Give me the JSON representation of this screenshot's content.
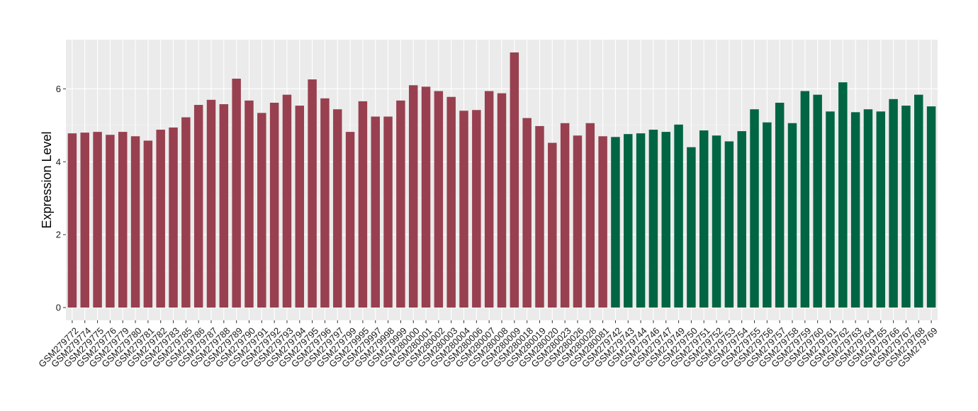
{
  "chart_data": {
    "type": "bar",
    "title": "",
    "xlabel": "",
    "ylabel": "Expression Level",
    "ylim": [
      -0.35,
      7.35
    ],
    "yticks": [
      0,
      2,
      4,
      6
    ],
    "ytick_labels": [
      "0",
      "2",
      "4",
      "6"
    ],
    "grid": true,
    "legend": "none",
    "categories": [
      "GSM279772",
      "GSM279774",
      "GSM279775",
      "GSM279776",
      "GSM279779",
      "GSM279780",
      "GSM279781",
      "GSM279782",
      "GSM279783",
      "GSM279785",
      "GSM279786",
      "GSM279787",
      "GSM279788",
      "GSM279789",
      "GSM279790",
      "GSM279791",
      "GSM279792",
      "GSM279793",
      "GSM279794",
      "GSM279795",
      "GSM279796",
      "GSM279797",
      "GSM279799",
      "GSM279995",
      "GSM279997",
      "GSM279998",
      "GSM279999",
      "GSM280000",
      "GSM280001",
      "GSM280002",
      "GSM280003",
      "GSM280004",
      "GSM280006",
      "GSM280007",
      "GSM280008",
      "GSM280009",
      "GSM280018",
      "GSM280019",
      "GSM280020",
      "GSM280023",
      "GSM280026",
      "GSM280028",
      "GSM280081",
      "GSM279742",
      "GSM279743",
      "GSM279744",
      "GSM279746",
      "GSM279747",
      "GSM279749",
      "GSM279750",
      "GSM279751",
      "GSM279752",
      "GSM279753",
      "GSM279754",
      "GSM279755",
      "GSM279756",
      "GSM279757",
      "GSM279758",
      "GSM279759",
      "GSM279760",
      "GSM279761",
      "GSM279762",
      "GSM279763",
      "GSM279764",
      "GSM279765",
      "GSM279766",
      "GSM279767",
      "GSM279768",
      "GSM279769"
    ],
    "values": [
      4.78,
      4.8,
      4.82,
      4.74,
      4.82,
      4.7,
      4.58,
      4.88,
      4.94,
      5.22,
      5.56,
      5.7,
      5.58,
      6.28,
      5.68,
      5.34,
      5.62,
      5.84,
      5.54,
      6.26,
      5.74,
      5.44,
      4.82,
      5.66,
      5.24,
      5.24,
      5.68,
      6.1,
      6.06,
      5.94,
      5.78,
      5.4,
      5.42,
      5.94,
      5.88,
      7.0,
      5.2,
      4.98,
      4.52,
      5.06,
      4.72,
      5.06,
      4.7,
      4.68,
      4.76,
      4.78,
      4.88,
      4.82,
      5.02,
      4.4,
      4.86,
      4.72,
      4.56,
      4.84,
      5.44,
      5.08,
      5.62,
      5.06,
      5.94,
      5.84,
      5.38,
      6.18,
      5.36,
      5.44,
      5.38,
      5.72,
      5.54,
      5.84,
      5.52
    ],
    "bar_colors": [
      "#98404f",
      "#98404f",
      "#98404f",
      "#98404f",
      "#98404f",
      "#98404f",
      "#98404f",
      "#98404f",
      "#98404f",
      "#98404f",
      "#98404f",
      "#98404f",
      "#98404f",
      "#98404f",
      "#98404f",
      "#98404f",
      "#98404f",
      "#98404f",
      "#98404f",
      "#98404f",
      "#98404f",
      "#98404f",
      "#98404f",
      "#98404f",
      "#98404f",
      "#98404f",
      "#98404f",
      "#98404f",
      "#98404f",
      "#98404f",
      "#98404f",
      "#98404f",
      "#98404f",
      "#98404f",
      "#98404f",
      "#98404f",
      "#98404f",
      "#98404f",
      "#98404f",
      "#98404f",
      "#98404f",
      "#98404f",
      "#98404f",
      "#006542",
      "#006542",
      "#006542",
      "#006542",
      "#006542",
      "#006542",
      "#006542",
      "#006542",
      "#006542",
      "#006542",
      "#006542",
      "#006542",
      "#006542",
      "#006542",
      "#006542",
      "#006542",
      "#006542",
      "#006542",
      "#006542",
      "#006542",
      "#006542",
      "#006542",
      "#006542",
      "#006542",
      "#006542",
      "#006542"
    ],
    "colors": {
      "panel_background": "#ebebeb",
      "grid_major": "#ffffff",
      "grid_minor": "#f5f5f5",
      "group_1": "#98404f",
      "group_2": "#006542"
    }
  }
}
